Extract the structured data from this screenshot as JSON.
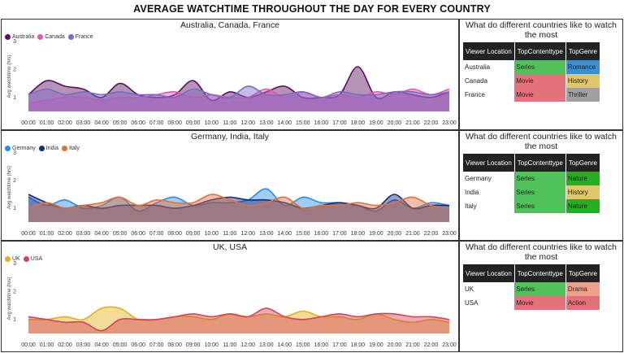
{
  "title": "AVERAGE WATCHTIME THROUGHOUT THE DAY FOR EVERY COUNTRY",
  "colors": {
    "Australia": "#5b0f5e",
    "Canada": "#e356b6",
    "France": "#7c6ac4",
    "Germany": "#2a8ce8",
    "India": "#1a2a7a",
    "Italy": "#e0703c",
    "UK": "#e2b11a",
    "USA": "#d4435a",
    "Series": "#4fc35a",
    "Movie": "#e4727a",
    "Romance": "#3d8ed8",
    "History": "#e2c66a",
    "Thriller": "#a0a0a0",
    "Nature": "#22b022",
    "Drama": "#efa08a",
    "Action": "#e4727a"
  },
  "chart_data": [
    {
      "type": "area",
      "title": "Australia, Canada, France",
      "ylabel": "Avg watchtime (hrs)",
      "ylim": [
        0.5,
        3
      ],
      "yticks": [
        "1",
        "2",
        "3"
      ],
      "categories": [
        "00:00",
        "01:00",
        "02:00",
        "03:00",
        "04:00",
        "05:00",
        "06:00",
        "07:00",
        "08:00",
        "09:00",
        "10:00",
        "11:00",
        "12:00",
        "13:00",
        "14:00",
        "15:00",
        "16:00",
        "17:00",
        "18:00",
        "19:00",
        "20:00",
        "21:00",
        "22:00",
        "23:00"
      ],
      "series": [
        {
          "name": "Australia",
          "values": [
            1.1,
            1.6,
            1.4,
            1.3,
            1.0,
            1.5,
            1.1,
            1.0,
            1.1,
            1.6,
            0.9,
            1.2,
            1.0,
            1.2,
            1.4,
            1.0,
            1.0,
            1.1,
            2.1,
            1.0,
            1.2,
            1.1,
            1.0,
            1.2
          ]
        },
        {
          "name": "Canada",
          "values": [
            0.8,
            0.9,
            1.0,
            1.0,
            0.9,
            1.0,
            1.0,
            1.1,
            1.2,
            1.0,
            1.1,
            1.0,
            1.0,
            1.3,
            1.0,
            1.2,
            1.0,
            1.1,
            1.0,
            1.2,
            1.1,
            1.3,
            1.1,
            1.3
          ]
        },
        {
          "name": "France",
          "values": [
            1.1,
            1.3,
            1.1,
            1.2,
            1.1,
            1.2,
            1.1,
            1.1,
            1.0,
            1.3,
            1.1,
            1.0,
            1.4,
            1.1,
            1.1,
            1.2,
            1.0,
            1.2,
            1.1,
            1.1,
            1.2,
            1.2,
            1.1,
            1.2
          ]
        }
      ]
    },
    {
      "type": "area",
      "title": "Germany, India, Italy",
      "ylabel": "Avg watchtime (hrs)",
      "ylim": [
        0.5,
        3
      ],
      "yticks": [
        "1",
        "2",
        "3"
      ],
      "categories": [
        "00:00",
        "01:00",
        "02:00",
        "03:00",
        "04:00",
        "05:00",
        "06:00",
        "07:00",
        "08:00",
        "09:00",
        "10:00",
        "11:00",
        "12:00",
        "13:00",
        "14:00",
        "15:00",
        "16:00",
        "17:00",
        "18:00",
        "19:00",
        "20:00",
        "21:00",
        "22:00",
        "23:00"
      ],
      "series": [
        {
          "name": "Germany",
          "values": [
            1.4,
            1.1,
            1.3,
            1.0,
            1.1,
            1.4,
            0.9,
            1.2,
            1.4,
            1.1,
            1.2,
            1.2,
            1.3,
            1.7,
            1.1,
            1.4,
            1.2,
            1.2,
            1.1,
            0.9,
            1.3,
            1.0,
            1.2,
            1.1
          ]
        },
        {
          "name": "India",
          "values": [
            1.5,
            1.2,
            1.0,
            1.1,
            1.0,
            1.1,
            1.1,
            1.1,
            1.0,
            1.1,
            1.3,
            1.4,
            1.3,
            1.3,
            1.2,
            1.0,
            1.1,
            1.2,
            1.1,
            1.0,
            1.5,
            1.0,
            1.1,
            1.1
          ]
        },
        {
          "name": "Italy",
          "values": [
            1.0,
            1.2,
            1.0,
            1.1,
            1.2,
            1.4,
            1.1,
            1.3,
            1.2,
            1.2,
            1.5,
            1.3,
            1.1,
            1.2,
            1.4,
            1.0,
            1.1,
            1.1,
            1.2,
            1.1,
            1.2,
            1.4,
            1.1,
            1.0
          ]
        }
      ]
    },
    {
      "type": "area",
      "title": "UK, USA",
      "ylabel": "Avg watchtime (hrs)",
      "ylim": [
        0.5,
        3
      ],
      "yticks": [
        "1",
        "2",
        "3"
      ],
      "categories": [
        "00:00",
        "01:00",
        "02:00",
        "03:00",
        "04:00",
        "05:00",
        "06:00",
        "07:00",
        "08:00",
        "09:00",
        "10:00",
        "11:00",
        "12:00",
        "13:00",
        "14:00",
        "15:00",
        "16:00",
        "17:00",
        "18:00",
        "19:00",
        "20:00",
        "21:00",
        "22:00",
        "23:00"
      ],
      "series": [
        {
          "name": "UK",
          "values": [
            1.0,
            1.0,
            1.1,
            1.0,
            1.4,
            1.4,
            1.0,
            1.0,
            1.1,
            1.1,
            1.0,
            1.2,
            1.1,
            1.2,
            1.1,
            1.3,
            1.1,
            1.1,
            1.0,
            1.2,
            1.0,
            0.9,
            1.0,
            0.9
          ]
        },
        {
          "name": "USA",
          "values": [
            1.1,
            1.0,
            0.9,
            0.9,
            0.6,
            1.0,
            1.0,
            1.0,
            1.1,
            1.2,
            1.1,
            1.2,
            1.1,
            1.4,
            1.1,
            1.0,
            1.1,
            1.2,
            1.1,
            1.2,
            1.2,
            1.1,
            1.1,
            1.0
          ]
        }
      ]
    }
  ],
  "tables": [
    {
      "title": "What do different countries like to watch the most",
      "headers": [
        "Viewer Location",
        "TopContenttype",
        "TopGenre"
      ],
      "rows": [
        [
          "Australia",
          "Series",
          "Romance"
        ],
        [
          "Canada",
          "Movie",
          "History"
        ],
        [
          "France",
          "Movie",
          "Thriller"
        ]
      ]
    },
    {
      "title": "What do different countries like to watch the most",
      "headers": [
        "Viewer Location",
        "TopContenttype",
        "TopGenre"
      ],
      "rows": [
        [
          "Germany",
          "Series",
          "Nature"
        ],
        [
          "India",
          "Series",
          "History"
        ],
        [
          "Italy",
          "Series",
          "Nature"
        ]
      ]
    },
    {
      "title": "What do different countries like to watch the most",
      "headers": [
        "Viewer Location",
        "TopContenttype",
        "TopGenre"
      ],
      "rows": [
        [
          "UK",
          "Series",
          "Drama"
        ],
        [
          "USA",
          "Movie",
          "Action"
        ]
      ]
    }
  ]
}
